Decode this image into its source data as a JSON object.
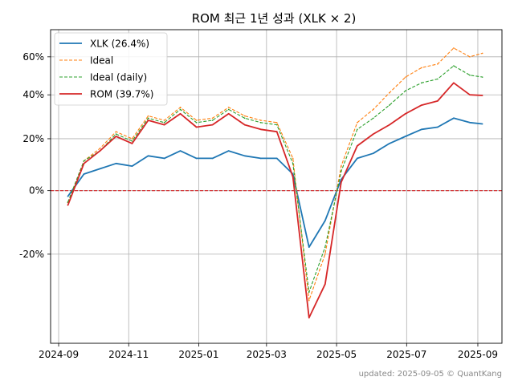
{
  "chart_data": {
    "type": "line",
    "title": "ROM 최근 1년 성과 (XLK × 2)",
    "xlabel": "",
    "ylabel": "",
    "x_ticks": [
      "2024-09",
      "2024-11",
      "2025-01",
      "2025-03",
      "2025-05",
      "2025-07",
      "2025-09"
    ],
    "y_ticks": [
      "-20%",
      "0%",
      "20%",
      "40%",
      "60%"
    ],
    "grid": true,
    "y_scale": "log(1+r)",
    "legend_position": "top-left",
    "reference_line": {
      "value": 0,
      "color": "#d62728",
      "style": "dashed"
    },
    "footer": "updated: 2025-09-05 © QuantKang",
    "series": [
      {
        "name": "XLK (26.4%)",
        "color": "#1f77b4",
        "style": "solid",
        "x": [
          "2024-09-09",
          "2024-09-23",
          "2024-10-07",
          "2024-10-21",
          "2024-11-04",
          "2024-11-18",
          "2024-12-02",
          "2024-12-16",
          "2024-12-30",
          "2025-01-13",
          "2025-01-27",
          "2025-02-10",
          "2025-02-24",
          "2025-03-10",
          "2025-03-24",
          "2025-04-07",
          "2025-04-21",
          "2025-05-05",
          "2025-05-19",
          "2025-06-02",
          "2025-06-16",
          "2025-06-30",
          "2025-07-14",
          "2025-07-28",
          "2025-08-11",
          "2025-08-25",
          "2025-09-05"
        ],
        "values": [
          -2,
          6,
          8,
          10,
          9,
          13,
          12,
          15,
          12,
          12,
          15,
          13,
          12,
          12,
          6,
          -18,
          -10,
          4,
          12,
          14,
          18,
          21,
          24,
          25,
          29,
          27,
          26.4
        ]
      },
      {
        "name": "Ideal",
        "color": "#ff7f0e",
        "style": "dashed",
        "x": [
          "2024-09-09",
          "2024-09-23",
          "2024-10-07",
          "2024-10-21",
          "2024-11-04",
          "2024-11-18",
          "2024-12-02",
          "2024-12-16",
          "2024-12-30",
          "2025-01-13",
          "2025-01-27",
          "2025-02-10",
          "2025-02-24",
          "2025-03-10",
          "2025-03-24",
          "2025-04-07",
          "2025-04-21",
          "2025-05-05",
          "2025-05-19",
          "2025-06-02",
          "2025-06-16",
          "2025-06-30",
          "2025-07-14",
          "2025-07-28",
          "2025-08-11",
          "2025-08-25",
          "2025-09-05"
        ],
        "values": [
          -4,
          11,
          16,
          23,
          20,
          30,
          28,
          34,
          28,
          29,
          34,
          30,
          28,
          27,
          12,
          -32,
          -20,
          9,
          27,
          33,
          41,
          49,
          54,
          56,
          65,
          60,
          62
        ]
      },
      {
        "name": "Ideal (daily)",
        "color": "#2ca02c",
        "style": "dashed",
        "x": [
          "2024-09-09",
          "2024-09-23",
          "2024-10-07",
          "2024-10-21",
          "2024-11-04",
          "2024-11-18",
          "2024-12-02",
          "2024-12-16",
          "2024-12-30",
          "2025-01-13",
          "2025-01-27",
          "2025-02-10",
          "2025-02-24",
          "2025-03-10",
          "2025-03-24",
          "2025-04-07",
          "2025-04-21",
          "2025-05-05",
          "2025-05-19",
          "2025-06-02",
          "2025-06-16",
          "2025-06-30",
          "2025-07-14",
          "2025-07-28",
          "2025-08-11",
          "2025-08-25",
          "2025-09-05"
        ],
        "values": [
          -4,
          11,
          15,
          22,
          19,
          29,
          27,
          33,
          27,
          28,
          33,
          29,
          27,
          26,
          10,
          -30,
          -18,
          7,
          24,
          29,
          35,
          42,
          46,
          48,
          55,
          50,
          49
        ]
      },
      {
        "name": "ROM (39.7%)",
        "color": "#d62728",
        "style": "solid",
        "x": [
          "2024-09-09",
          "2024-09-23",
          "2024-10-07",
          "2024-10-21",
          "2024-11-04",
          "2024-11-18",
          "2024-12-02",
          "2024-12-16",
          "2024-12-30",
          "2025-01-13",
          "2025-01-27",
          "2025-02-10",
          "2025-02-24",
          "2025-03-10",
          "2025-03-24",
          "2025-04-07",
          "2025-04-21",
          "2025-05-05",
          "2025-05-19",
          "2025-06-02",
          "2025-06-16",
          "2025-06-30",
          "2025-07-14",
          "2025-07-28",
          "2025-08-11",
          "2025-08-25",
          "2025-09-05"
        ],
        "values": [
          -5,
          10,
          15,
          21,
          18,
          28,
          26,
          31,
          25,
          26,
          31,
          26,
          24,
          23,
          5,
          -36,
          -28,
          3,
          17,
          22,
          26,
          31,
          35,
          37,
          46,
          40,
          39.7
        ]
      }
    ]
  }
}
